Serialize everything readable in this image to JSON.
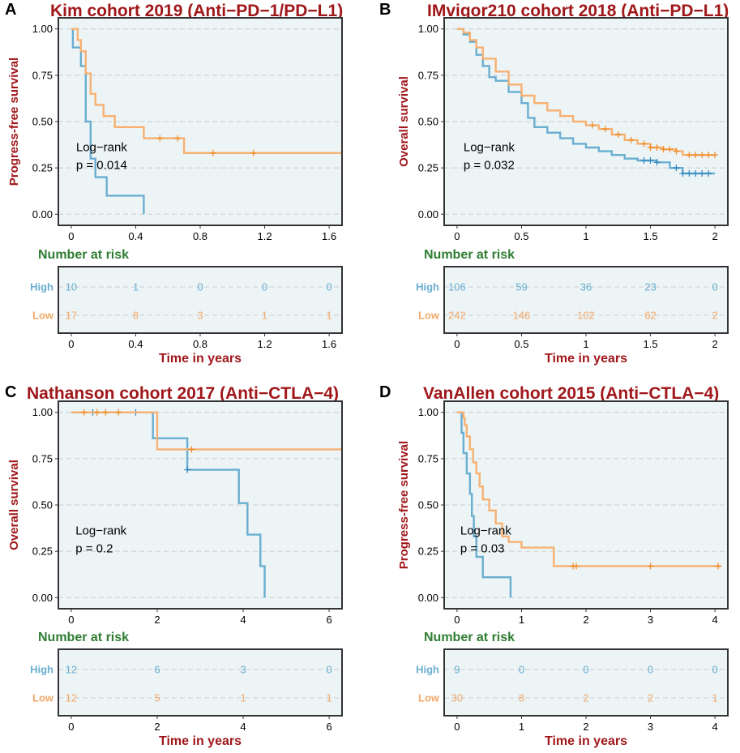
{
  "colors": {
    "high": "#6aaed0",
    "low": "#f7b172",
    "high_dark": "#2e86c1",
    "low_dark": "#f08a24",
    "panel_bg": "#edf4f6",
    "grid": "#c8cdd0",
    "title": "#a0171a",
    "risk_title": "#2e7d32"
  },
  "chart_data": [
    {
      "type": "line",
      "letter": "A",
      "title": "Kim cohort 2019 (Anti−PD−1/PD−L1)",
      "ylabel": "Progress-free survival",
      "xlabel": "Time in years",
      "xlim": [
        -0.08,
        1.68
      ],
      "ylim": [
        -0.06,
        1.06
      ],
      "xticks": [
        0,
        0.4,
        0.8,
        1.2,
        1.6
      ],
      "xtick_labels": [
        "0",
        "0.4",
        "0.8",
        "1.2",
        "1.6"
      ],
      "yticks": [
        0,
        0.25,
        0.5,
        0.75,
        1.0
      ],
      "ytick_labels": [
        "0.00",
        "0.25",
        "0.50",
        "0.75",
        "1.00"
      ],
      "annotation": [
        "Log−rank",
        "p = 0.014"
      ],
      "annotation_pos": [
        0.03,
        0.34
      ],
      "series": [
        {
          "name": "High",
          "color_key": "high",
          "steps": [
            [
              0,
              1.0
            ],
            [
              0.01,
              0.9
            ],
            [
              0.06,
              0.8
            ],
            [
              0.09,
              0.5
            ],
            [
              0.12,
              0.3
            ],
            [
              0.15,
              0.2
            ],
            [
              0.22,
              0.1
            ],
            [
              0.45,
              0.0
            ]
          ],
          "end": 0.45,
          "censor": []
        },
        {
          "name": "Low",
          "color_key": "low",
          "steps": [
            [
              0,
              1.0
            ],
            [
              0.04,
              0.94
            ],
            [
              0.06,
              0.88
            ],
            [
              0.09,
              0.76
            ],
            [
              0.12,
              0.65
            ],
            [
              0.15,
              0.59
            ],
            [
              0.2,
              0.53
            ],
            [
              0.27,
              0.47
            ],
            [
              0.45,
              0.41
            ],
            [
              0.7,
              0.33
            ]
          ],
          "end": 1.68,
          "censor": [
            0.55,
            0.66,
            0.88,
            1.13
          ]
        }
      ],
      "risk_title": "Number at risk",
      "risk_x": [
        0,
        0.4,
        0.8,
        1.2,
        1.6
      ],
      "risk_rows": [
        {
          "label": "High",
          "values": [
            "10",
            "1",
            "0",
            "0",
            "0"
          ]
        },
        {
          "label": "Low",
          "values": [
            "17",
            "8",
            "3",
            "1",
            "1"
          ]
        }
      ]
    },
    {
      "type": "line",
      "letter": "B",
      "title": "IMvigor210 cohort 2018 (Anti−PD−L1)",
      "ylabel": "Overall survival",
      "xlabel": "Time in years",
      "xlim": [
        -0.1,
        2.1
      ],
      "ylim": [
        -0.06,
        1.06
      ],
      "xticks": [
        0,
        0.5,
        1,
        1.5,
        2
      ],
      "xtick_labels": [
        "0",
        "0.5",
        "1",
        "1.5",
        "2"
      ],
      "yticks": [
        0,
        0.25,
        0.5,
        0.75,
        1.0
      ],
      "ytick_labels": [
        "0.00",
        "0.25",
        "0.50",
        "0.75",
        "1.00"
      ],
      "annotation": [
        "Log−rank",
        "p = 0.032"
      ],
      "annotation_pos": [
        0.05,
        0.34
      ],
      "series": [
        {
          "name": "High",
          "color_key": "high",
          "steps": [
            [
              0,
              1.0
            ],
            [
              0.05,
              0.97
            ],
            [
              0.1,
              0.93
            ],
            [
              0.15,
              0.86
            ],
            [
              0.2,
              0.8
            ],
            [
              0.25,
              0.74
            ],
            [
              0.3,
              0.72
            ],
            [
              0.4,
              0.66
            ],
            [
              0.5,
              0.6
            ],
            [
              0.55,
              0.52
            ],
            [
              0.6,
              0.47
            ],
            [
              0.7,
              0.44
            ],
            [
              0.8,
              0.41
            ],
            [
              0.9,
              0.38
            ],
            [
              1.0,
              0.36
            ],
            [
              1.1,
              0.34
            ],
            [
              1.2,
              0.32
            ],
            [
              1.3,
              0.3
            ],
            [
              1.4,
              0.29
            ],
            [
              1.55,
              0.28
            ],
            [
              1.65,
              0.25
            ],
            [
              1.75,
              0.22
            ]
          ],
          "end": 2.0,
          "censor": [
            1.45,
            1.5,
            1.55,
            1.7,
            1.75,
            1.8,
            1.85,
            1.9,
            1.95
          ]
        },
        {
          "name": "Low",
          "color_key": "low",
          "steps": [
            [
              0,
              1.0
            ],
            [
              0.05,
              0.98
            ],
            [
              0.1,
              0.94
            ],
            [
              0.15,
              0.9
            ],
            [
              0.2,
              0.84
            ],
            [
              0.3,
              0.77
            ],
            [
              0.4,
              0.7
            ],
            [
              0.5,
              0.64
            ],
            [
              0.6,
              0.6
            ],
            [
              0.7,
              0.56
            ],
            [
              0.8,
              0.53
            ],
            [
              0.9,
              0.5
            ],
            [
              1.0,
              0.48
            ],
            [
              1.1,
              0.46
            ],
            [
              1.2,
              0.43
            ],
            [
              1.3,
              0.4
            ],
            [
              1.4,
              0.38
            ],
            [
              1.5,
              0.36
            ],
            [
              1.6,
              0.35
            ],
            [
              1.7,
              0.34
            ],
            [
              1.75,
              0.32
            ]
          ],
          "end": 2.0,
          "censor": [
            1.05,
            1.15,
            1.25,
            1.35,
            1.45,
            1.5,
            1.55,
            1.6,
            1.65,
            1.7,
            1.8,
            1.85,
            1.9,
            1.95,
            2.0
          ]
        }
      ],
      "risk_title": "Number at risk",
      "risk_x": [
        0,
        0.5,
        1,
        1.5,
        2
      ],
      "risk_rows": [
        {
          "label": "High",
          "values": [
            "106",
            "59",
            "36",
            "23",
            "0"
          ]
        },
        {
          "label": "Low",
          "values": [
            "242",
            "146",
            "102",
            "62",
            "2"
          ]
        }
      ]
    },
    {
      "type": "line",
      "letter": "C",
      "title": "Nathanson cohort 2017 (Anti−CTLA−4)",
      "ylabel": "Overall survival",
      "xlabel": "Time in years",
      "xlim": [
        -0.3,
        6.3
      ],
      "ylim": [
        -0.06,
        1.06
      ],
      "xticks": [
        0,
        2,
        4,
        6
      ],
      "xtick_labels": [
        "0",
        "2",
        "4",
        "6"
      ],
      "yticks": [
        0,
        0.25,
        0.5,
        0.75,
        1.0
      ],
      "ytick_labels": [
        "0.00",
        "0.25",
        "0.50",
        "0.75",
        "1.00"
      ],
      "annotation": [
        "Log−rank",
        "p = 0.2"
      ],
      "annotation_pos": [
        0.1,
        0.34
      ],
      "series": [
        {
          "name": "High",
          "color_key": "high",
          "steps": [
            [
              0,
              1.0
            ],
            [
              1.5,
              1.0
            ],
            [
              1.9,
              0.86
            ],
            [
              2.7,
              0.69
            ],
            [
              3.9,
              0.51
            ],
            [
              4.1,
              0.34
            ],
            [
              4.4,
              0.17
            ],
            [
              4.5,
              0.0
            ]
          ],
          "end": 4.5,
          "censor": [
            0.5,
            1.5,
            2.7
          ]
        },
        {
          "name": "Low",
          "color_key": "low",
          "steps": [
            [
              0,
              1.0
            ],
            [
              2.0,
              0.8
            ]
          ],
          "end": 6.3,
          "censor": [
            0.3,
            0.6,
            0.8,
            1.1,
            2.8
          ]
        }
      ],
      "risk_title": "Number at risk",
      "risk_x": [
        0,
        2,
        4,
        6
      ],
      "risk_rows": [
        {
          "label": "High",
          "values": [
            "12",
            "6",
            "3",
            "0"
          ]
        },
        {
          "label": "Low",
          "values": [
            "12",
            "5",
            "1",
            "1"
          ]
        }
      ]
    },
    {
      "type": "line",
      "letter": "D",
      "title": "VanAllen cohort 2015 (Anti−CTLA−4)",
      "ylabel": "Progress-free survival",
      "xlabel": "Time in years",
      "xlim": [
        -0.2,
        4.2
      ],
      "ylim": [
        -0.06,
        1.06
      ],
      "xticks": [
        0,
        1,
        2,
        3,
        4
      ],
      "xtick_labels": [
        "0",
        "1",
        "2",
        "3",
        "4"
      ],
      "yticks": [
        0,
        0.25,
        0.5,
        0.75,
        1.0
      ],
      "ytick_labels": [
        "0.00",
        "0.25",
        "0.50",
        "0.75",
        "1.00"
      ],
      "annotation": [
        "Log−rank",
        "p = 0.03"
      ],
      "annotation_pos": [
        0.05,
        0.34
      ],
      "series": [
        {
          "name": "High",
          "color_key": "high",
          "steps": [
            [
              0,
              1.0
            ],
            [
              0.07,
              0.89
            ],
            [
              0.1,
              0.78
            ],
            [
              0.15,
              0.67
            ],
            [
              0.2,
              0.56
            ],
            [
              0.23,
              0.44
            ],
            [
              0.26,
              0.33
            ],
            [
              0.3,
              0.22
            ],
            [
              0.4,
              0.11
            ],
            [
              0.83,
              0.0
            ]
          ],
          "end": 0.83,
          "censor": []
        },
        {
          "name": "Low",
          "color_key": "low",
          "steps": [
            [
              0,
              1.0
            ],
            [
              0.1,
              0.97
            ],
            [
              0.12,
              0.93
            ],
            [
              0.15,
              0.87
            ],
            [
              0.2,
              0.8
            ],
            [
              0.25,
              0.73
            ],
            [
              0.3,
              0.67
            ],
            [
              0.35,
              0.6
            ],
            [
              0.4,
              0.53
            ],
            [
              0.5,
              0.47
            ],
            [
              0.6,
              0.4
            ],
            [
              0.7,
              0.33
            ],
            [
              0.8,
              0.3
            ],
            [
              1.0,
              0.27
            ],
            [
              1.5,
              0.17
            ]
          ],
          "end": 4.1,
          "censor": [
            1.8,
            1.85,
            3.0,
            4.05
          ]
        }
      ],
      "risk_title": "Number at risk",
      "risk_x": [
        0,
        1,
        2,
        3,
        4
      ],
      "risk_rows": [
        {
          "label": "High",
          "values": [
            "9",
            "0",
            "0",
            "0",
            "0"
          ]
        },
        {
          "label": "Low",
          "values": [
            "30",
            "8",
            "2",
            "2",
            "1"
          ]
        }
      ]
    }
  ]
}
